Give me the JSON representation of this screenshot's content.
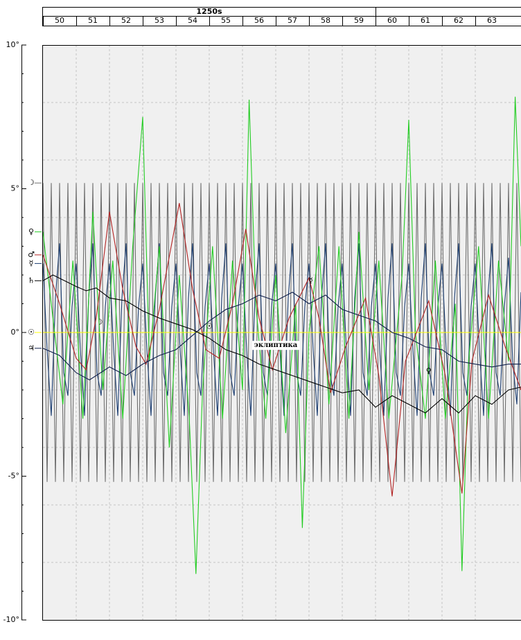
{
  "chart_data": {
    "type": "line",
    "decade": {
      "value": 1250,
      "label": "1250s",
      "span": 10
    },
    "xlim": [
      1250,
      1264.375
    ],
    "xticks": [
      {
        "value": 1250,
        "label": "50"
      },
      {
        "value": 1251,
        "label": "51"
      },
      {
        "value": 1252,
        "label": "52"
      },
      {
        "value": 1253,
        "label": "53"
      },
      {
        "value": 1254,
        "label": "54"
      },
      {
        "value": 1255,
        "label": "55"
      },
      {
        "value": 1256,
        "label": "56"
      },
      {
        "value": 1257,
        "label": "57"
      },
      {
        "value": 1258,
        "label": "58"
      },
      {
        "value": 1259,
        "label": "59"
      },
      {
        "value": 1260,
        "label": "60"
      },
      {
        "value": 1261,
        "label": "61"
      },
      {
        "value": 1262,
        "label": "62"
      },
      {
        "value": 1263,
        "label": "63"
      }
    ],
    "ylim": [
      -10,
      10
    ],
    "yticks": [
      {
        "value": 10,
        "label": "10°"
      },
      {
        "value": 5,
        "label": "5°"
      },
      {
        "value": 0,
        "label": "0°"
      },
      {
        "value": -5,
        "label": "-5°"
      },
      {
        "value": -10,
        "label": "-10°"
      }
    ],
    "yminor_ticks": [
      -9,
      -8,
      -7,
      -6,
      -4,
      -3,
      -2,
      -1,
      1,
      2,
      3,
      4,
      6,
      7,
      8,
      9
    ],
    "ygrid": [
      -8,
      -6,
      -4,
      -2,
      2,
      4,
      6,
      8
    ],
    "grid": true,
    "x": [
      1250,
      1250.125,
      1250.25,
      1250.375,
      1250.5,
      1250.625,
      1250.75,
      1250.875,
      1251,
      1251.125,
      1251.25,
      1251.375,
      1251.5,
      1251.625,
      1251.75,
      1251.875,
      1252,
      1252.125,
      1252.25,
      1252.375,
      1252.5,
      1252.625,
      1252.75,
      1252.875,
      1253,
      1253.125,
      1253.25,
      1253.375,
      1253.5,
      1253.625,
      1253.75,
      1253.875,
      1254,
      1254.125,
      1254.25,
      1254.375,
      1254.5,
      1254.625,
      1254.75,
      1254.875,
      1255,
      1255.125,
      1255.25,
      1255.375,
      1255.5,
      1255.625,
      1255.75,
      1255.875,
      1256,
      1256.125,
      1256.25,
      1256.375,
      1256.5,
      1256.625,
      1256.75,
      1256.875,
      1257,
      1257.125,
      1257.25,
      1257.375,
      1257.5,
      1257.625,
      1257.75,
      1257.875,
      1258,
      1258.125,
      1258.25,
      1258.375,
      1258.5,
      1258.625,
      1258.75,
      1258.875,
      1259,
      1259.125,
      1259.25,
      1259.375,
      1259.5,
      1259.625,
      1259.75,
      1259.875,
      1260,
      1260.125,
      1260.25,
      1260.375,
      1260.5,
      1260.625,
      1260.75,
      1260.875,
      1261,
      1261.125,
      1261.25,
      1261.375,
      1261.5,
      1261.625,
      1261.75,
      1261.875,
      1262,
      1262.125,
      1262.25,
      1262.375,
      1262.5,
      1262.625,
      1262.75,
      1262.875,
      1263,
      1263.125,
      1263.25,
      1263.375,
      1263.5,
      1263.625,
      1263.75,
      1263.875,
      1264,
      1264.125,
      1264.25,
      1264.375
    ],
    "series": [
      {
        "name": "☽",
        "color": "#6e6e6e",
        "values": [
          5.2,
          -5.2,
          5.2,
          -5.2,
          5.2,
          -5.2,
          5.2,
          -5.2,
          5.2,
          -5.2,
          5.2,
          -5.2,
          5.2,
          -5.2,
          5.2,
          -5.2,
          5.2,
          -5.2,
          5.2,
          -5.2,
          5.2,
          -5.2,
          5.2,
          -5.2,
          5.2,
          -5.2,
          5.2,
          -5.2,
          5.2,
          -5.2,
          5.2,
          -5.2,
          5.2,
          -5.2,
          5.2,
          -5.2,
          5.2,
          -5.2,
          5.2,
          -5.2,
          5.2,
          -5.2,
          5.2,
          -5.2,
          5.2,
          -5.2,
          5.2,
          -5.2,
          5.2,
          -5.2,
          5.2,
          -5.2,
          5.2,
          -5.2,
          5.2,
          -5.2,
          5.2,
          -5.2,
          5.2,
          -5.2,
          5.2,
          -5.2,
          5.2,
          -5.2,
          5.2,
          -5.2,
          5.2,
          -5.2,
          5.2,
          -5.2,
          5.2,
          -5.2,
          5.2,
          -5.2,
          5.2,
          -5.2,
          5.2,
          -5.2,
          5.2,
          -5.2,
          5.2,
          -5.2,
          5.2,
          -5.2,
          5.2,
          -5.2,
          5.2,
          -5.2,
          5.2,
          -5.2,
          5.2,
          -5.2,
          5.2,
          -5.2,
          5.2,
          -5.2,
          5.2,
          -5.2,
          5.2,
          -5.2,
          5.2,
          -5.2,
          5.2,
          -5.2,
          5.2,
          -5.2,
          5.2,
          -5.2,
          5.2,
          -5.2,
          5.2,
          -5.2,
          5.2,
          -5.2,
          5.2,
          -5.2
        ]
      },
      {
        "name": "☿",
        "color": "#1a3c70",
        "values": [
          2.4,
          -0.6,
          -2.9,
          1.2,
          3.1,
          -1.4,
          -2.2,
          0.9,
          2.4,
          -0.6,
          -2.9,
          1.2,
          3.1,
          -1.4,
          -2.2,
          0.9,
          2.4,
          -0.6,
          -2.9,
          1.2,
          3.1,
          -1.4,
          -2.2,
          0.9,
          2.4,
          -0.6,
          -2.9,
          1.2,
          3.1,
          -1.4,
          -2.2,
          0.9,
          2.4,
          -0.6,
          -2.9,
          1.2,
          3.1,
          -1.4,
          -2.2,
          0.9,
          2.4,
          -0.6,
          -2.9,
          1.2,
          3.1,
          -1.4,
          -2.2,
          0.9,
          2.4,
          -0.6,
          -2.9,
          1.2,
          3.1,
          -1.4,
          -2.2,
          0.9,
          2.4,
          -0.6,
          -2.9,
          1.2,
          3.1,
          -1.4,
          -2.2,
          0.9,
          2.4,
          -0.6,
          -2.9,
          1.2,
          3.1,
          -1.4,
          -2.2,
          0.9,
          2.4,
          -0.6,
          -2.9,
          1.2,
          3.1,
          -1.4,
          -2.2,
          0.9,
          2.4,
          -0.6,
          -2.9,
          1.2,
          3.1,
          -1.4,
          -2.2,
          0.9,
          2.4,
          -0.6,
          -2.9,
          1.2,
          3.1,
          -1.4,
          -2.2,
          0.9,
          2.4,
          -0.6,
          -2.9,
          1.2,
          3.1,
          -1.4,
          -2.2,
          0.9,
          2.4,
          -0.6,
          -2.9,
          1.2,
          3.1,
          -1.4,
          -2.2,
          0.9,
          2.6,
          -1.0,
          -2.5,
          1.4
        ]
      },
      {
        "name": "♀",
        "color": "#22cc22",
        "x": [
          1250,
          1250.3,
          1250.6,
          1250.9,
          1251.2,
          1251.5,
          1251.8,
          1252.1,
          1252.4,
          1252.7,
          1253.0,
          1253.2,
          1253.5,
          1253.8,
          1254.1,
          1254.4,
          1254.6,
          1254.8,
          1255.1,
          1255.4,
          1255.7,
          1256.0,
          1256.2,
          1256.4,
          1256.7,
          1257.0,
          1257.3,
          1257.6,
          1257.8,
          1258.0,
          1258.3,
          1258.6,
          1258.9,
          1259.2,
          1259.5,
          1259.8,
          1260.1,
          1260.4,
          1260.8,
          1261.0,
          1261.2,
          1261.5,
          1261.8,
          1262.1,
          1262.4,
          1262.6,
          1262.8,
          1263.1,
          1263.4,
          1263.7,
          1264.0,
          1264.2,
          1264.375
        ],
        "values": [
          3.5,
          0.5,
          -2.5,
          2.5,
          -3,
          4.2,
          -2,
          2.5,
          -3,
          3,
          7.5,
          -1,
          3,
          -4,
          2,
          -3,
          -8.4,
          -2,
          3,
          -3,
          2.5,
          -2,
          8.1,
          1,
          -3,
          2,
          -3.5,
          1,
          -6.8,
          0,
          3,
          -2.5,
          3,
          -3,
          3.5,
          -2,
          2.5,
          -3,
          2,
          7.4,
          0,
          -3,
          2.5,
          -3,
          1,
          -8.3,
          -1,
          3,
          -3,
          2.5,
          -1,
          8.2,
          3
        ]
      },
      {
        "name": "☉",
        "color": "#ffff00",
        "x": [
          1250,
          1264.375
        ],
        "values": [
          0,
          0
        ]
      },
      {
        "name": "♂",
        "color": "#b22222",
        "x": [
          1250,
          1250.5,
          1251.0,
          1251.3,
          1251.6,
          1252.0,
          1252.4,
          1252.8,
          1253.1,
          1253.5,
          1254.1,
          1254.5,
          1254.9,
          1255.3,
          1255.7,
          1256.1,
          1256.5,
          1256.9,
          1257.4,
          1258.0,
          1258.3,
          1258.65,
          1259.1,
          1259.7,
          1260.1,
          1260.5,
          1260.9,
          1261.6,
          1262.1,
          1262.6,
          1262.9,
          1263.4,
          1263.9,
          1264.375
        ],
        "values": [
          2.7,
          1.0,
          -0.9,
          -1.3,
          0.5,
          4.2,
          1.5,
          -0.5,
          -1.1,
          0.8,
          4.5,
          1.5,
          -0.6,
          -0.9,
          1.0,
          3.6,
          0.5,
          -1.3,
          0.5,
          1.9,
          0.5,
          -2.1,
          -0.5,
          1.2,
          -1.5,
          -5.7,
          -1.0,
          1.1,
          -1.5,
          -5.6,
          -1.0,
          1.3,
          -0.5,
          -2.0
        ]
      },
      {
        "name": "♃",
        "color": "#0e1e4a",
        "x": [
          1250,
          1250.5,
          1251,
          1251.4,
          1252,
          1252.5,
          1253,
          1253.5,
          1254,
          1254.5,
          1255,
          1255.5,
          1256,
          1256.5,
          1257,
          1257.5,
          1258,
          1258.5,
          1259,
          1259.5,
          1260,
          1260.5,
          1261,
          1261.5,
          1262,
          1262.5,
          1263,
          1263.5,
          1264,
          1264.375
        ],
        "values": [
          -0.55,
          -0.8,
          -1.4,
          -1.65,
          -1.2,
          -1.5,
          -1.1,
          -0.8,
          -0.6,
          -0.1,
          0.4,
          0.8,
          1.0,
          1.3,
          1.1,
          1.4,
          1.0,
          1.3,
          0.8,
          0.6,
          0.4,
          0.0,
          -0.2,
          -0.5,
          -0.6,
          -1.0,
          -1.1,
          -1.2,
          -1.1,
          -1.1
        ]
      },
      {
        "name": "♄",
        "color": "#000000",
        "x": [
          1250,
          1250.3,
          1251,
          1251.3,
          1251.6,
          1252,
          1252.5,
          1253,
          1253.5,
          1254,
          1254.5,
          1255,
          1255.5,
          1256,
          1256.5,
          1257,
          1257.5,
          1258,
          1258.5,
          1259,
          1259.5,
          1260,
          1260.5,
          1261,
          1261.5,
          1262,
          1262.5,
          1263,
          1263.5,
          1264,
          1264.375
        ],
        "values": [
          1.8,
          2.0,
          1.6,
          1.45,
          1.55,
          1.2,
          1.1,
          0.75,
          0.5,
          0.3,
          0.1,
          -0.2,
          -0.6,
          -0.8,
          -1.1,
          -1.3,
          -1.5,
          -1.7,
          -1.9,
          -2.1,
          -2.0,
          -2.6,
          -2.2,
          -2.5,
          -2.8,
          -2.3,
          -2.8,
          -2.2,
          -2.5,
          -2.0,
          -1.9
        ]
      }
    ],
    "annotations": [
      {
        "text": "эклиптика",
        "x": 1257.0,
        "y": -0.45,
        "color": "#000000",
        "boxed": true
      },
      {
        "text": "☽",
        "x": 1251.7,
        "y": 0.35,
        "color": "#9a9a9a",
        "boxed": false
      },
      {
        "text": "☉",
        "x": 1255.0,
        "y": 0.2,
        "color": "#e0c000",
        "boxed": false
      },
      {
        "text": "☿",
        "x": 1258.05,
        "y": 1.8,
        "color": "#1a3c70",
        "boxed": false
      },
      {
        "text": "♀",
        "x": 1261.6,
        "y": -1.35,
        "color": "#22cc22",
        "boxed": false
      }
    ]
  }
}
